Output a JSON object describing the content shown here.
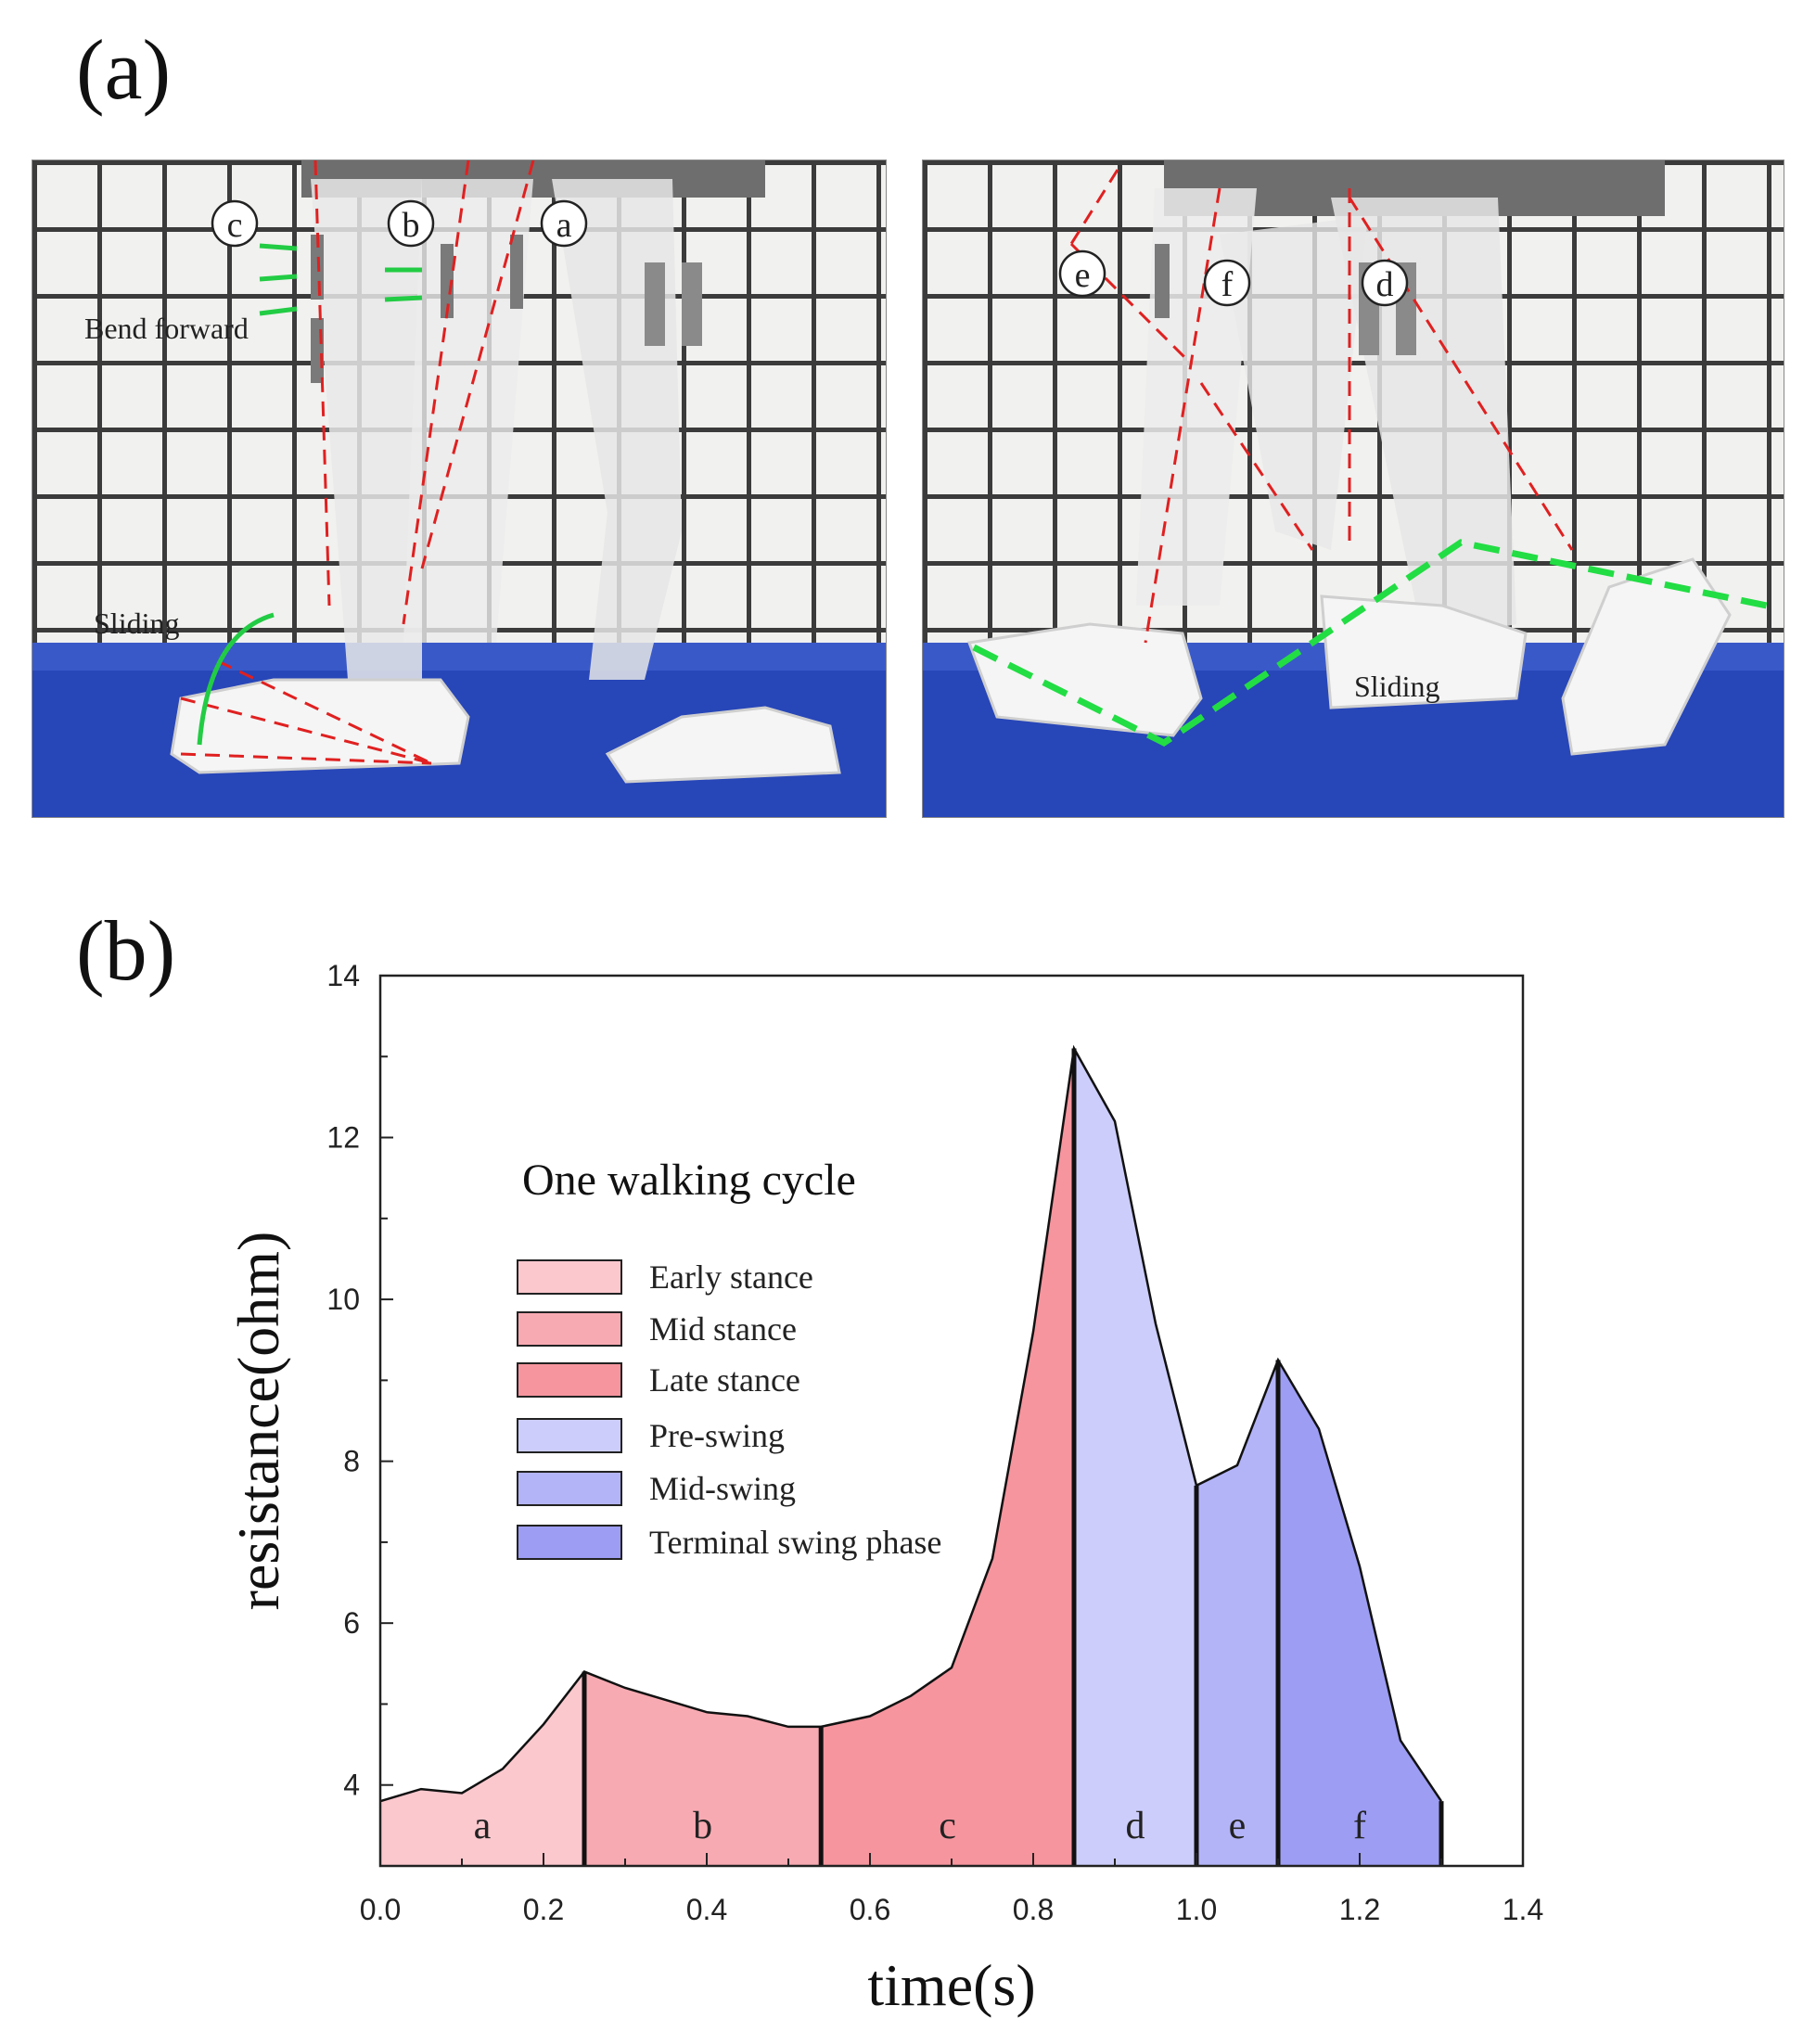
{
  "panels": {
    "a_label": "(a)",
    "b_label": "(b)"
  },
  "photo_left": {
    "markers": [
      "c",
      "b",
      "a"
    ],
    "annotations": {
      "bend": "Bend forward",
      "sliding": "Sliding"
    }
  },
  "photo_right": {
    "markers": [
      "e",
      "f",
      "d"
    ],
    "annotations": {
      "sliding": "Sliding"
    }
  },
  "chart_data": {
    "type": "area",
    "xlabel": "time(s)",
    "ylabel": "resistance(ohm)",
    "xlim": [
      0.0,
      1.4
    ],
    "ylim": [
      3.0,
      14.0
    ],
    "xticks": [
      "0.0",
      "0.2",
      "0.4",
      "0.6",
      "0.8",
      "1.0",
      "1.2",
      "1.4"
    ],
    "yticks": [
      "4",
      "6",
      "8",
      "10",
      "12",
      "14"
    ],
    "legend_title": "One walking cycle",
    "legend_position": "center-left",
    "grid": false,
    "curve": {
      "x": [
        0.0,
        0.05,
        0.1,
        0.15,
        0.2,
        0.25,
        0.3,
        0.35,
        0.4,
        0.45,
        0.5,
        0.54,
        0.6,
        0.65,
        0.7,
        0.75,
        0.8,
        0.85,
        0.9,
        0.95,
        1.0,
        1.05,
        1.1,
        1.15,
        1.2,
        1.25,
        1.3
      ],
      "y": [
        3.8,
        3.95,
        3.9,
        4.2,
        4.75,
        5.4,
        5.2,
        5.05,
        4.9,
        4.85,
        4.72,
        4.72,
        4.85,
        5.1,
        5.45,
        6.8,
        9.6,
        13.1,
        12.2,
        9.7,
        7.7,
        7.95,
        9.25,
        8.4,
        6.7,
        4.55,
        3.8
      ]
    },
    "phases": [
      {
        "name": "Early stance",
        "label": "a",
        "start": 0.0,
        "end": 0.25,
        "color": "#fbc8ce"
      },
      {
        "name": "Mid stance",
        "label": "b",
        "start": 0.25,
        "end": 0.54,
        "color": "#f8aab2"
      },
      {
        "name": "Late stance",
        "label": "c",
        "start": 0.54,
        "end": 0.85,
        "color": "#f6959e"
      },
      {
        "name": "Pre-swing",
        "label": "d",
        "start": 0.85,
        "end": 1.0,
        "color": "#cccdfb"
      },
      {
        "name": "Mid-swing",
        "label": "e",
        "start": 1.0,
        "end": 1.1,
        "color": "#b3b4f8"
      },
      {
        "name": "Terminal swing phase",
        "label": "f",
        "start": 1.1,
        "end": 1.3,
        "color": "#9d9df4"
      }
    ]
  }
}
